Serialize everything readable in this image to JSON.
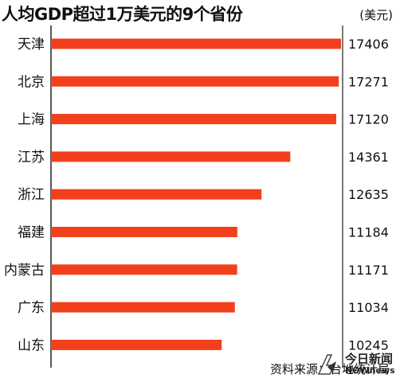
{
  "title": "人均GDP超过1万美元的9个省份",
  "unit": "(美元)",
  "source": "资料来源：台地统计局",
  "watermark": {
    "cn": "今日新闻",
    "en": "NOWnews"
  },
  "colors": {
    "bar": "#f2401d",
    "axis": "#222222",
    "text": "#111111"
  },
  "chart_data": {
    "type": "bar",
    "orientation": "horizontal",
    "categories": [
      "天津",
      "北京",
      "上海",
      "江苏",
      "浙江",
      "福建",
      "内蒙古",
      "广东",
      "山东"
    ],
    "values": [
      17406,
      17271,
      17120,
      14361,
      12635,
      11184,
      11171,
      11034,
      10245
    ],
    "data_labels": [
      "17406",
      "17271",
      "17120",
      "14361",
      "12635",
      "11184",
      "11171",
      "11034",
      "10245"
    ],
    "title": "人均GDP超过1万美元的9个省份",
    "xlabel": "",
    "ylabel": "(美元)",
    "xlim": [
      0,
      17406
    ],
    "grid": false,
    "legend": "none"
  }
}
